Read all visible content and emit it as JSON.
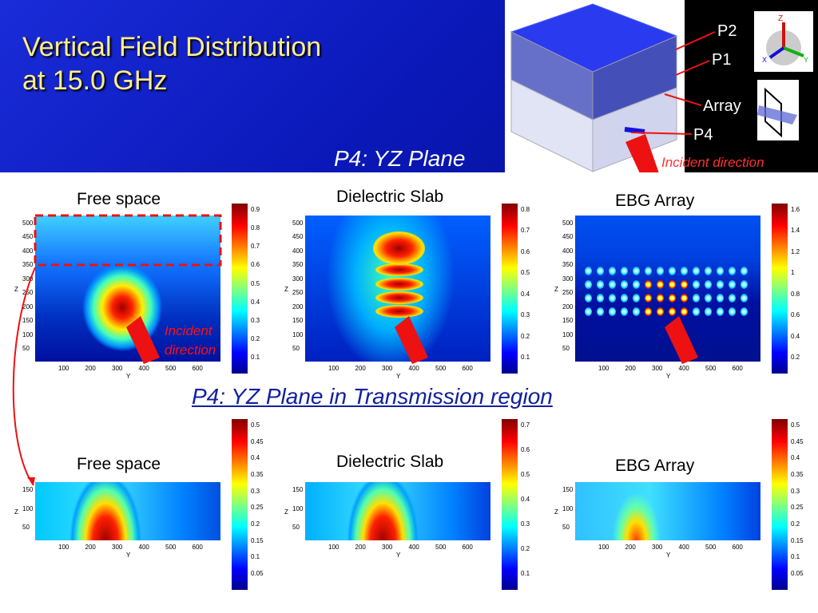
{
  "slide": {
    "title_line1": "Vertical Field Distribution",
    "title_line2": "at 15.0 GHz",
    "top_section_label": "P4: YZ Plane",
    "bottom_section_label": "P4: YZ Plane in Transmission region",
    "incident_direction_label": "Incident direction",
    "incident_label_line1": "Incident",
    "incident_label_line2": "direction",
    "colors": {
      "title": "#ffee88",
      "background": "#0a18b8",
      "arrow": "#ee1111",
      "subtitle": "#1020a0"
    }
  },
  "model_labels": {
    "p2": "P2",
    "p1": "P1",
    "array": "Array",
    "p4": "P4"
  },
  "axis_icon": {
    "z": "Z",
    "x": "X",
    "y": "Y"
  },
  "chart_data": [
    {
      "type": "heatmap",
      "title": "Free space",
      "xlabel": "Y",
      "ylabel": "Z",
      "xticks": [
        "100",
        "200",
        "300",
        "400",
        "500",
        "600"
      ],
      "yticks": [
        "50",
        "100",
        "150",
        "200",
        "250",
        "300",
        "350",
        "400",
        "450",
        "500"
      ],
      "colorbar_ticks": [
        "0.1",
        "0.2",
        "0.3",
        "0.4",
        "0.5",
        "0.6",
        "0.7",
        "0.8",
        "0.9"
      ]
    },
    {
      "type": "heatmap",
      "title": "Dielectric Slab",
      "xlabel": "Y",
      "ylabel": "Z",
      "xticks": [
        "100",
        "200",
        "300",
        "400",
        "500",
        "600"
      ],
      "yticks": [
        "50",
        "100",
        "150",
        "200",
        "250",
        "300",
        "350",
        "400",
        "450",
        "500"
      ],
      "colorbar_ticks": [
        "0.1",
        "0.2",
        "0.3",
        "0.4",
        "0.5",
        "0.6",
        "0.7",
        "0.8"
      ]
    },
    {
      "type": "heatmap",
      "title": "EBG Array",
      "xlabel": "Y",
      "ylabel": "Z",
      "xticks": [
        "100",
        "200",
        "300",
        "400",
        "500",
        "600"
      ],
      "yticks": [
        "50",
        "100",
        "150",
        "200",
        "250",
        "300",
        "350",
        "400",
        "450",
        "500"
      ],
      "colorbar_ticks": [
        "0.2",
        "0.4",
        "0.6",
        "0.8",
        "1",
        "1.2",
        "1.4",
        "1.6"
      ]
    },
    {
      "type": "heatmap",
      "title": "Free space",
      "xlabel": "Y",
      "ylabel": "Z",
      "xticks": [
        "100",
        "200",
        "300",
        "400",
        "500",
        "600"
      ],
      "yticks": [
        "50",
        "100",
        "150"
      ],
      "colorbar_ticks": [
        "0.05",
        "0.1",
        "0.15",
        "0.2",
        "0.25",
        "0.3",
        "0.35",
        "0.4",
        "0.45",
        "0.5"
      ]
    },
    {
      "type": "heatmap",
      "title": "Dielectric Slab",
      "xlabel": "Y",
      "ylabel": "Z",
      "xticks": [
        "100",
        "200",
        "300",
        "400",
        "500",
        "600"
      ],
      "yticks": [
        "50",
        "100",
        "150"
      ],
      "colorbar_ticks": [
        "0.1",
        "0.2",
        "0.3",
        "0.4",
        "0.5",
        "0.6",
        "0.7"
      ]
    },
    {
      "type": "heatmap",
      "title": "EBG Array",
      "xlabel": "Y",
      "ylabel": "Z",
      "xticks": [
        "100",
        "200",
        "300",
        "400",
        "500",
        "600"
      ],
      "yticks": [
        "50",
        "100",
        "150"
      ],
      "colorbar_ticks": [
        "0.05",
        "0.1",
        "0.15",
        "0.2",
        "0.25",
        "0.3",
        "0.35",
        "0.4",
        "0.45",
        "0.5"
      ]
    }
  ]
}
